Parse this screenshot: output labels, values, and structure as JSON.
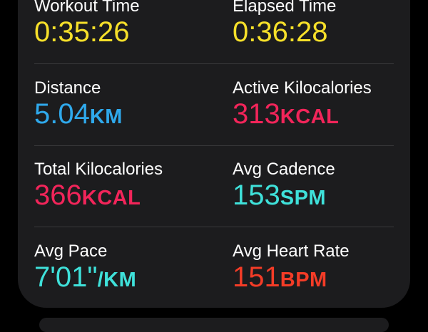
{
  "metrics": [
    {
      "label": "Workout Time",
      "value": "0:35:26",
      "unit": "",
      "color": "#f7e02a"
    },
    {
      "label": "Elapsed Time",
      "value": "0:36:28",
      "unit": "",
      "color": "#f7e02a"
    },
    {
      "label": "Distance",
      "value": "5.04",
      "unit": "KM",
      "color": "#2fa9ec"
    },
    {
      "label": "Active Kilocalories",
      "value": "313",
      "unit": "KCAL",
      "color": "#f2255a"
    },
    {
      "label": "Total Kilocalories",
      "value": "366",
      "unit": "KCAL",
      "color": "#f2255a"
    },
    {
      "label": "Avg Cadence",
      "value": "153",
      "unit": "SPM",
      "color": "#3fe1da"
    },
    {
      "label": "Avg Pace",
      "value": "7'01\"",
      "unit": "/KM",
      "color": "#3fe1da"
    },
    {
      "label": "Avg Heart Rate",
      "value": "151",
      "unit": "BPM",
      "color": "#f43c27"
    }
  ]
}
